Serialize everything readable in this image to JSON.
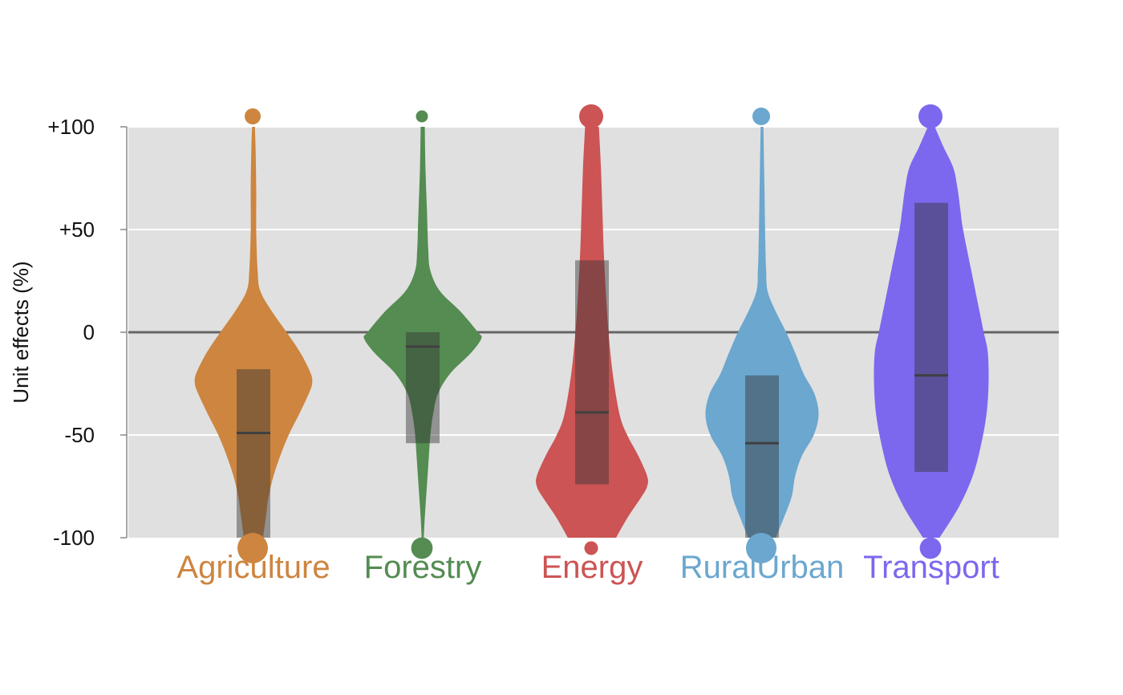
{
  "chart_data": {
    "type": "violin",
    "title": "",
    "xlabel": "",
    "ylabel": "Unit effects (%)",
    "ylim": [
      -100,
      100
    ],
    "yticks": [
      {
        "value": 100,
        "label": "+100"
      },
      {
        "value": 50,
        "label": "+50"
      },
      {
        "value": 0,
        "label": "0"
      },
      {
        "value": -50,
        "label": "-50"
      },
      {
        "value": -100,
        "label": "-100"
      }
    ],
    "grid": true,
    "zero_line": true,
    "categories": [
      "Agriculture",
      "Forestry",
      "Energy",
      "RuralUrban",
      "Transport"
    ],
    "series": [
      {
        "category": "Agriculture",
        "color": "#cd853f",
        "q1": -100,
        "median": -49,
        "q3": -18,
        "share_above_100": 0.5,
        "share_below_minus_100": 1.0,
        "density": [
          [
            100,
            0.02
          ],
          [
            90,
            0.03
          ],
          [
            70,
            0.04
          ],
          [
            50,
            0.04
          ],
          [
            30,
            0.06
          ],
          [
            20,
            0.1
          ],
          [
            10,
            0.27
          ],
          [
            0,
            0.48
          ],
          [
            -10,
            0.68
          ],
          [
            -20,
            0.83
          ],
          [
            -25,
            0.85
          ],
          [
            -30,
            0.8
          ],
          [
            -40,
            0.66
          ],
          [
            -50,
            0.51
          ],
          [
            -60,
            0.39
          ],
          [
            -70,
            0.29
          ],
          [
            -80,
            0.22
          ],
          [
            -90,
            0.18
          ],
          [
            -100,
            0.14
          ]
        ]
      },
      {
        "category": "Forestry",
        "color": "#548c51",
        "q1": -54,
        "median": -7,
        "q3": 0,
        "share_above_100": 0.25,
        "share_below_minus_100": 0.6,
        "density": [
          [
            100,
            0.03
          ],
          [
            80,
            0.04
          ],
          [
            60,
            0.06
          ],
          [
            50,
            0.07
          ],
          [
            40,
            0.08
          ],
          [
            30,
            0.11
          ],
          [
            20,
            0.25
          ],
          [
            10,
            0.55
          ],
          [
            0,
            0.8
          ],
          [
            -3,
            0.85
          ],
          [
            -10,
            0.7
          ],
          [
            -20,
            0.4
          ],
          [
            -30,
            0.22
          ],
          [
            -40,
            0.15
          ],
          [
            -50,
            0.11
          ],
          [
            -60,
            0.09
          ],
          [
            -70,
            0.07
          ],
          [
            -80,
            0.05
          ],
          [
            -90,
            0.03
          ],
          [
            -100,
            0.015
          ]
        ]
      },
      {
        "category": "Energy",
        "color": "#cc5454",
        "q1": -74,
        "median": -39,
        "q3": 35,
        "share_above_100": 1.0,
        "share_below_minus_100": 0.25,
        "density": [
          [
            100,
            0.1
          ],
          [
            80,
            0.13
          ],
          [
            60,
            0.15
          ],
          [
            40,
            0.17
          ],
          [
            20,
            0.2
          ],
          [
            0,
            0.24
          ],
          [
            -20,
            0.3
          ],
          [
            -40,
            0.4
          ],
          [
            -50,
            0.51
          ],
          [
            -60,
            0.67
          ],
          [
            -70,
            0.8
          ],
          [
            -75,
            0.8
          ],
          [
            -80,
            0.72
          ],
          [
            -90,
            0.52
          ],
          [
            -100,
            0.35
          ]
        ]
      },
      {
        "category": "RuralUrban",
        "color": "#6ba7cf",
        "q1": -100,
        "median": -54,
        "q3": -21,
        "share_above_100": 0.6,
        "share_below_minus_100": 1.0,
        "density": [
          [
            100,
            0.02
          ],
          [
            80,
            0.03
          ],
          [
            60,
            0.04
          ],
          [
            40,
            0.05
          ],
          [
            30,
            0.06
          ],
          [
            20,
            0.08
          ],
          [
            10,
            0.2
          ],
          [
            0,
            0.35
          ],
          [
            -10,
            0.48
          ],
          [
            -20,
            0.6
          ],
          [
            -30,
            0.76
          ],
          [
            -40,
            0.82
          ],
          [
            -50,
            0.75
          ],
          [
            -60,
            0.58
          ],
          [
            -70,
            0.48
          ],
          [
            -80,
            0.43
          ],
          [
            -90,
            0.32
          ],
          [
            -100,
            0.2
          ]
        ]
      },
      {
        "category": "Transport",
        "color": "#7b68ee",
        "q1": -68,
        "median": -21,
        "q3": 63,
        "share_above_100": 1.0,
        "share_below_minus_100": 0.6,
        "density": [
          [
            100,
            0.05
          ],
          [
            90,
            0.18
          ],
          [
            80,
            0.32
          ],
          [
            70,
            0.38
          ],
          [
            60,
            0.42
          ],
          [
            50,
            0.46
          ],
          [
            30,
            0.58
          ],
          [
            10,
            0.7
          ],
          [
            0,
            0.76
          ],
          [
            -10,
            0.82
          ],
          [
            -25,
            0.83
          ],
          [
            -40,
            0.8
          ],
          [
            -55,
            0.72
          ],
          [
            -70,
            0.6
          ],
          [
            -85,
            0.4
          ],
          [
            -100,
            0.12
          ]
        ]
      }
    ]
  }
}
